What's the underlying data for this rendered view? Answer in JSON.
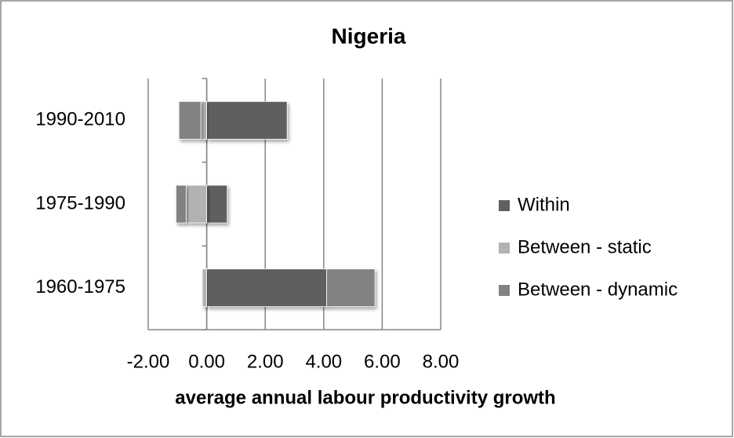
{
  "chart_data": {
    "type": "bar",
    "orientation": "horizontal",
    "stacked": true,
    "title": "Nigeria",
    "x_label": "average annual labour productivity growth",
    "categories": [
      "1960-1975",
      "1975-1990",
      "1990-2010"
    ],
    "series": [
      {
        "name": "Within",
        "color": "#5f5f5f",
        "values": [
          4.1,
          0.7,
          2.75
        ]
      },
      {
        "name": "Between - static",
        "color": "#b2b2b2",
        "values": [
          -0.15,
          -0.7,
          -0.2
        ]
      },
      {
        "name": "Between - dynamic",
        "color": "#828282",
        "values": [
          1.65,
          -0.35,
          -0.75
        ]
      }
    ],
    "xlim": [
      -2,
      8
    ],
    "xticks": [
      {
        "value": -2,
        "label": "-2.00"
      },
      {
        "value": 0,
        "label": "0.00"
      },
      {
        "value": 2,
        "label": "2.00"
      },
      {
        "value": 4,
        "label": "4.00"
      },
      {
        "value": 6,
        "label": "6.00"
      },
      {
        "value": 8,
        "label": "8.00"
      }
    ],
    "grid": true,
    "legend": "right"
  }
}
